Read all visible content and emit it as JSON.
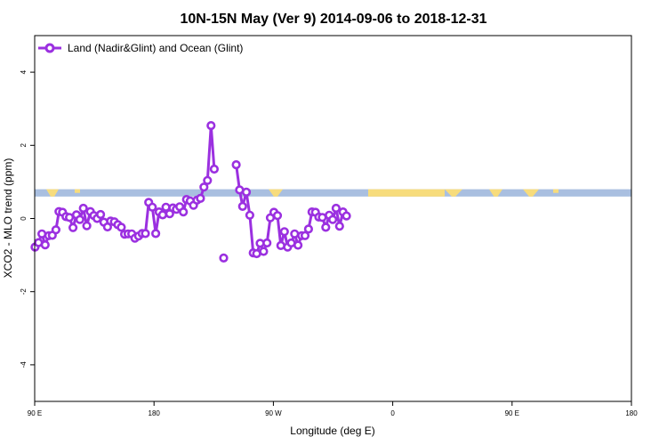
{
  "chart_data": {
    "type": "line",
    "title": "10N-15N May (Ver 9)   2014-09-06 to 2018-12-31",
    "xlabel": "Longitude (deg E)",
    "ylabel": "XCO2 - MLO trend (ppm)",
    "xlim": [
      90,
      450
    ],
    "ylim": [
      -5,
      5
    ],
    "x_ticks": [
      {
        "value": 90,
        "label": "90 E"
      },
      {
        "value": 180,
        "label": "180"
      },
      {
        "value": 270,
        "label": "90 W"
      },
      {
        "value": 360,
        "label": "0"
      },
      {
        "value": 450,
        "label": "90 E"
      },
      {
        "value": 540,
        "label": "180"
      }
    ],
    "y_ticks": [
      {
        "value": -4,
        "label": "-4"
      },
      {
        "value": -2,
        "label": "-2"
      },
      {
        "value": 0,
        "label": "0"
      },
      {
        "value": 2,
        "label": "2"
      },
      {
        "value": 4,
        "label": "4"
      }
    ],
    "legend": {
      "position": "top-left"
    },
    "colors": {
      "series": "#9b30e0",
      "ocean_band": "#a9bfe0",
      "land_band": "#f7dc7c"
    },
    "land_band": {
      "y_range": [
        0.6,
        0.8
      ]
    },
    "series": [
      {
        "name": "Land (Nadir&Glint) and Ocean (Glint)",
        "points": [
          [
            90.3,
            -0.78
          ],
          [
            92.9,
            -0.66
          ],
          [
            95.4,
            -0.42
          ],
          [
            97.9,
            -0.72
          ],
          [
            100.6,
            -0.47
          ],
          [
            103.3,
            -0.46
          ],
          [
            106.0,
            -0.31
          ],
          [
            108.3,
            0.19
          ],
          [
            111.0,
            0.17
          ],
          [
            113.6,
            0.05
          ],
          [
            116.2,
            0.03
          ],
          [
            118.9,
            -0.25
          ],
          [
            121.5,
            0.1
          ],
          [
            124.1,
            -0.03
          ],
          [
            126.7,
            0.28
          ],
          [
            129.3,
            -0.2
          ],
          [
            132.0,
            0.19
          ],
          [
            134.6,
            0.08
          ],
          [
            137.1,
            0.0
          ],
          [
            139.7,
            0.11
          ],
          [
            142.2,
            -0.1
          ],
          [
            144.9,
            -0.23
          ],
          [
            147.3,
            -0.07
          ],
          [
            150.1,
            -0.09
          ],
          [
            152.7,
            -0.17
          ],
          [
            155.3,
            -0.24
          ],
          [
            157.8,
            -0.43
          ],
          [
            160.4,
            -0.42
          ],
          [
            163.2,
            -0.42
          ],
          [
            165.6,
            -0.54
          ],
          [
            168.3,
            -0.48
          ],
          [
            171.0,
            -0.41
          ],
          [
            173.5,
            -0.41
          ],
          [
            176.0,
            0.44
          ],
          [
            178.7,
            0.31
          ],
          [
            181.3,
            -0.41
          ],
          [
            183.8,
            0.18
          ],
          [
            186.5,
            0.1
          ],
          [
            189.0,
            0.31
          ],
          [
            191.8,
            0.13
          ],
          [
            194.2,
            0.29
          ],
          [
            196.8,
            0.25
          ],
          [
            199.4,
            0.32
          ],
          [
            202.1,
            0.18
          ],
          [
            204.5,
            0.52
          ],
          [
            207.3,
            0.48
          ],
          [
            209.8,
            0.36
          ],
          [
            212.4,
            0.5
          ],
          [
            215.0,
            0.55
          ],
          [
            217.6,
            0.86
          ],
          [
            220.3,
            1.04
          ],
          [
            223.0,
            2.54
          ],
          [
            225.4,
            1.35
          ]
        ]
      },
      {
        "name": "",
        "points": [
          [
            232.5,
            -1.08
          ]
        ]
      },
      {
        "name": "",
        "points": [
          [
            242.0,
            1.47
          ],
          [
            244.5,
            0.78
          ],
          [
            246.8,
            0.33
          ],
          [
            249.6,
            0.72
          ],
          [
            252.2,
            0.09
          ],
          [
            254.8,
            -0.94
          ],
          [
            257.4,
            -0.96
          ],
          [
            260.0,
            -0.68
          ],
          [
            262.6,
            -0.9
          ],
          [
            265.2,
            -0.67
          ],
          [
            267.7,
            0.02
          ],
          [
            270.4,
            0.17
          ],
          [
            273.1,
            0.08
          ],
          [
            275.6,
            -0.74
          ],
          [
            278.3,
            -0.36
          ],
          [
            280.7,
            -0.78
          ],
          [
            283.5,
            -0.67
          ],
          [
            286.0,
            -0.42
          ],
          [
            288.6,
            -0.73
          ],
          [
            291.3,
            -0.47
          ],
          [
            293.9,
            -0.47
          ],
          [
            296.5,
            -0.29
          ],
          [
            299.1,
            0.18
          ],
          [
            301.7,
            0.17
          ],
          [
            304.3,
            0.04
          ],
          [
            306.9,
            0.03
          ],
          [
            309.5,
            -0.24
          ],
          [
            312.1,
            0.09
          ],
          [
            314.7,
            -0.03
          ],
          [
            317.3,
            0.28
          ],
          [
            319.9,
            -0.21
          ],
          [
            322.5,
            0.18
          ],
          [
            325.1,
            0.07
          ]
        ]
      }
    ],
    "x_domain_note_skip": null
  }
}
